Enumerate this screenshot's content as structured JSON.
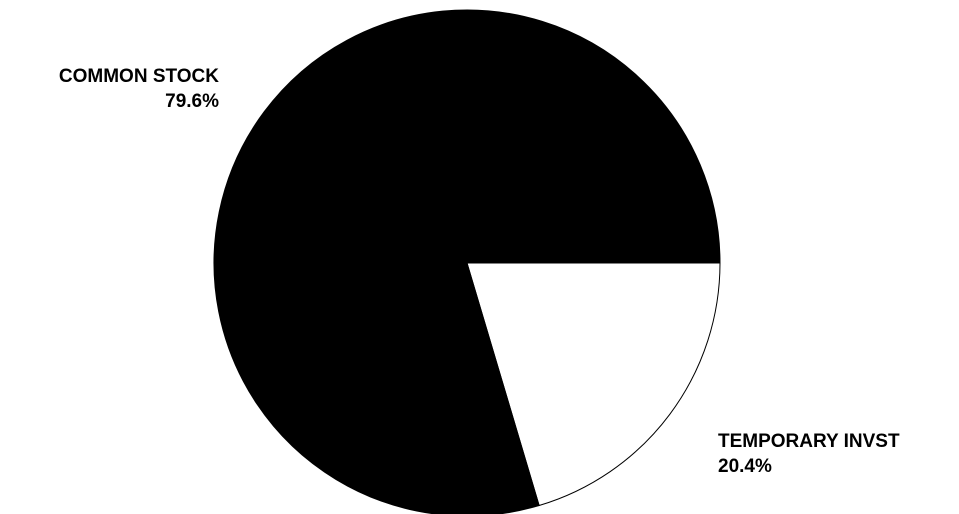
{
  "chart_data": {
    "type": "pie",
    "title": "",
    "slices": [
      {
        "label": "COMMON STOCK",
        "value": 79.6,
        "value_label": "79.6%",
        "color": "#000000"
      },
      {
        "label": "TEMPORARY INVST",
        "value": 20.4,
        "value_label": "20.4%",
        "color": "#ffffff"
      }
    ],
    "legend": "none",
    "outline_color": "#000000"
  }
}
